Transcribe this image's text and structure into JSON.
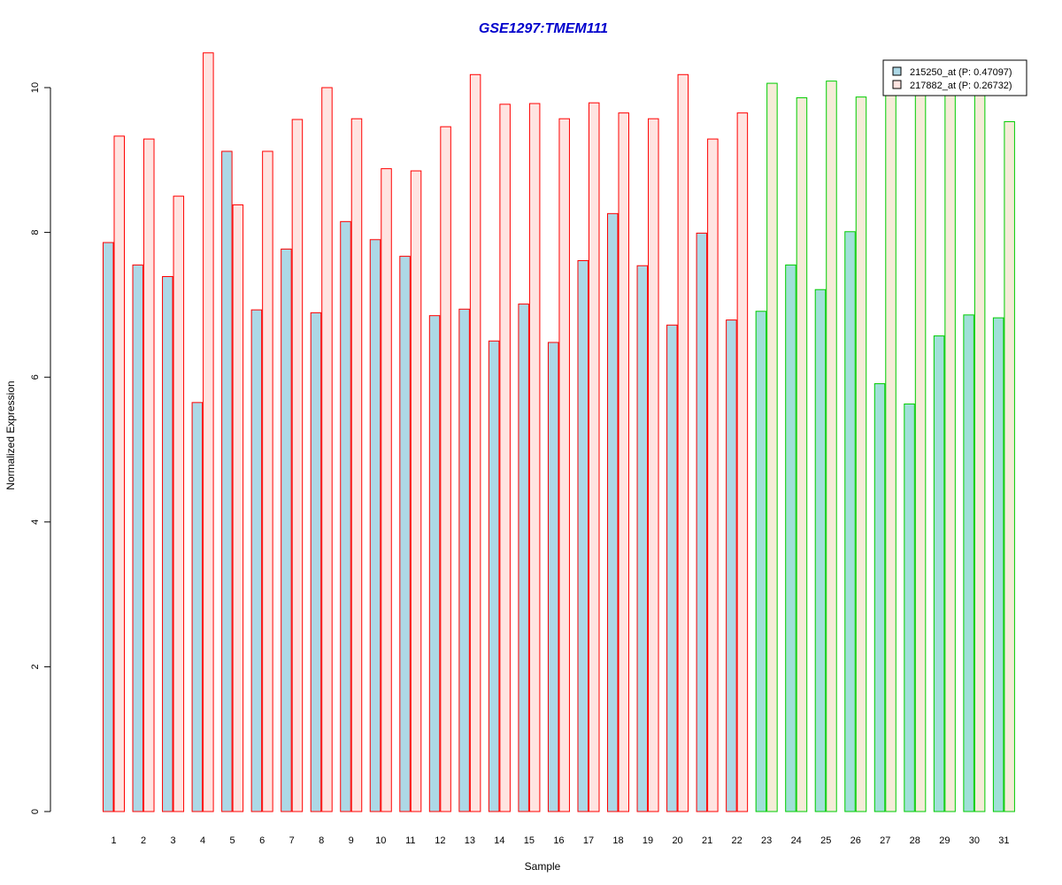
{
  "chart_data": {
    "type": "bar",
    "title": "GSE1297:TMEM111",
    "xlabel": "Sample",
    "ylabel": "Normalized Expression",
    "ylim": [
      0,
      10.5
    ],
    "yticks": [
      0,
      2,
      4,
      6,
      8,
      10
    ],
    "grid": false,
    "legend_position": "top-right",
    "categories": [
      "1",
      "2",
      "3",
      "4",
      "5",
      "6",
      "7",
      "8",
      "9",
      "10",
      "11",
      "12",
      "13",
      "14",
      "15",
      "16",
      "17",
      "18",
      "19",
      "20",
      "21",
      "22",
      "23",
      "24",
      "25",
      "26",
      "27",
      "28",
      "29",
      "30",
      "31"
    ],
    "series": [
      {
        "name": "215250_at (P: 0.47097)",
        "values": [
          7.86,
          7.55,
          7.39,
          5.65,
          9.12,
          6.93,
          7.77,
          6.89,
          8.15,
          7.9,
          7.67,
          6.85,
          6.94,
          6.5,
          7.01,
          6.48,
          7.61,
          8.26,
          7.54,
          6.72,
          7.99,
          6.79,
          6.91,
          7.55,
          7.21,
          8.01,
          5.91,
          5.63,
          6.57,
          6.86,
          6.82
        ]
      },
      {
        "name": "217882_at (P: 0.26732)",
        "values": [
          9.33,
          9.29,
          8.5,
          10.48,
          8.38,
          9.12,
          9.56,
          10.0,
          9.57,
          8.88,
          8.85,
          9.46,
          10.18,
          9.77,
          9.78,
          9.57,
          9.79,
          9.65,
          9.57,
          10.18,
          9.29,
          9.65,
          10.06,
          9.86,
          10.09,
          9.87,
          9.93,
          9.9,
          9.9,
          9.9,
          9.53
        ]
      }
    ],
    "groups": [
      {
        "samples": [
          1,
          22
        ],
        "outline_color": "#ff0000",
        "fill_colors": [
          "#add8e6",
          "#ffe4e1"
        ]
      },
      {
        "samples": [
          23,
          31
        ],
        "outline_color": "#00cc00",
        "fill_colors": [
          "#a0e0d8",
          "#f5ecd8"
        ]
      }
    ],
    "colors": {
      "title": "#0000cc",
      "legend_swatch_1": "#add8e6",
      "legend_swatch_2": "#ffe4e1"
    }
  }
}
